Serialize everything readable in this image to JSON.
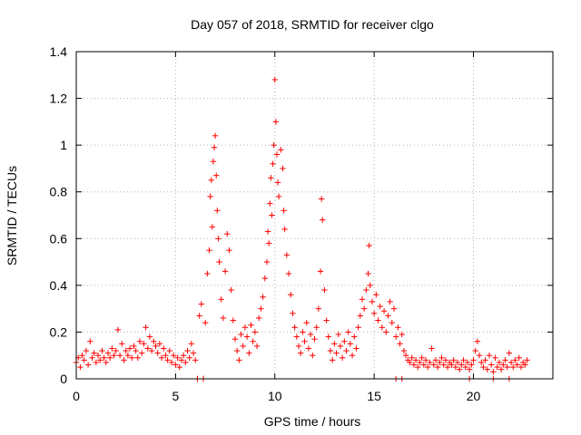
{
  "chart_data": {
    "type": "scatter",
    "title": "Day 057 of 2018, SRMTID for receiver clgo",
    "xlabel": "GPS time / hours",
    "ylabel": "SRMTID / TECUs",
    "xlim": [
      0,
      24
    ],
    "ylim": [
      0,
      1.4
    ],
    "xticks": [
      0,
      5,
      10,
      15,
      20
    ],
    "yticks": [
      0,
      0.2,
      0.4,
      0.6,
      0.8,
      1,
      1.2,
      1.4
    ],
    "ytick_labels": [
      "0",
      "0.2",
      "0.4",
      "0.6",
      "0.8",
      "1",
      "1.2",
      "1.4"
    ],
    "grid": true,
    "marker": "+",
    "color": "#ff0000",
    "series": [
      {
        "name": "SRMTID",
        "points": [
          [
            0.0,
            0.07
          ],
          [
            0.1,
            0.09
          ],
          [
            0.2,
            0.05
          ],
          [
            0.3,
            0.1
          ],
          [
            0.4,
            0.08
          ],
          [
            0.5,
            0.12
          ],
          [
            0.6,
            0.06
          ],
          [
            0.7,
            0.16
          ],
          [
            0.8,
            0.09
          ],
          [
            0.9,
            0.11
          ],
          [
            1.0,
            0.07
          ],
          [
            1.1,
            0.1
          ],
          [
            1.2,
            0.08
          ],
          [
            1.3,
            0.12
          ],
          [
            1.4,
            0.09
          ],
          [
            1.5,
            0.07
          ],
          [
            1.6,
            0.11
          ],
          [
            1.7,
            0.09
          ],
          [
            1.8,
            0.13
          ],
          [
            1.9,
            0.1
          ],
          [
            2.0,
            0.12
          ],
          [
            2.1,
            0.21
          ],
          [
            2.2,
            0.1
          ],
          [
            2.3,
            0.15
          ],
          [
            2.4,
            0.08
          ],
          [
            2.5,
            0.12
          ],
          [
            2.6,
            0.1
          ],
          [
            2.7,
            0.13
          ],
          [
            2.8,
            0.09
          ],
          [
            2.9,
            0.14
          ],
          [
            3.0,
            0.12
          ],
          [
            3.1,
            0.09
          ],
          [
            3.2,
            0.16
          ],
          [
            3.3,
            0.11
          ],
          [
            3.4,
            0.15
          ],
          [
            3.5,
            0.22
          ],
          [
            3.6,
            0.13
          ],
          [
            3.7,
            0.18
          ],
          [
            3.8,
            0.12
          ],
          [
            3.9,
            0.16
          ],
          [
            4.0,
            0.14
          ],
          [
            4.1,
            0.11
          ],
          [
            4.2,
            0.15
          ],
          [
            4.3,
            0.09
          ],
          [
            4.4,
            0.13
          ],
          [
            4.5,
            0.1
          ],
          [
            4.6,
            0.08
          ],
          [
            4.7,
            0.12
          ],
          [
            4.8,
            0.07
          ],
          [
            4.9,
            0.1
          ],
          [
            5.0,
            0.06
          ],
          [
            5.1,
            0.09
          ],
          [
            5.2,
            0.05
          ],
          [
            5.3,
            0.08
          ],
          [
            5.4,
            0.1
          ],
          [
            5.5,
            0.07
          ],
          [
            5.6,
            0.12
          ],
          [
            5.7,
            0.09
          ],
          [
            5.8,
            0.15
          ],
          [
            5.9,
            0.11
          ],
          [
            6.0,
            0.08
          ],
          [
            6.1,
            0.0
          ],
          [
            6.2,
            0.27
          ],
          [
            6.3,
            0.32
          ],
          [
            6.4,
            0.0
          ],
          [
            6.5,
            0.24
          ],
          [
            6.6,
            0.45
          ],
          [
            6.7,
            0.55
          ],
          [
            6.75,
            0.78
          ],
          [
            6.8,
            0.85
          ],
          [
            6.85,
            0.65
          ],
          [
            6.9,
            0.93
          ],
          [
            6.95,
            0.99
          ],
          [
            7.0,
            1.04
          ],
          [
            7.05,
            0.87
          ],
          [
            7.1,
            0.72
          ],
          [
            7.15,
            0.6
          ],
          [
            7.2,
            0.5
          ],
          [
            7.3,
            0.34
          ],
          [
            7.4,
            0.26
          ],
          [
            7.5,
            0.46
          ],
          [
            7.6,
            0.62
          ],
          [
            7.7,
            0.55
          ],
          [
            7.8,
            0.38
          ],
          [
            7.9,
            0.25
          ],
          [
            8.0,
            0.17
          ],
          [
            8.1,
            0.12
          ],
          [
            8.2,
            0.08
          ],
          [
            8.3,
            0.19
          ],
          [
            8.4,
            0.14
          ],
          [
            8.5,
            0.22
          ],
          [
            8.6,
            0.18
          ],
          [
            8.7,
            0.11
          ],
          [
            8.8,
            0.23
          ],
          [
            8.9,
            0.16
          ],
          [
            9.0,
            0.2
          ],
          [
            9.1,
            0.14
          ],
          [
            9.2,
            0.26
          ],
          [
            9.3,
            0.3
          ],
          [
            9.4,
            0.35
          ],
          [
            9.5,
            0.43
          ],
          [
            9.6,
            0.5
          ],
          [
            9.65,
            0.63
          ],
          [
            9.7,
            0.58
          ],
          [
            9.75,
            0.75
          ],
          [
            9.8,
            0.86
          ],
          [
            9.85,
            0.7
          ],
          [
            9.9,
            0.92
          ],
          [
            9.95,
            1.0
          ],
          [
            10.0,
            1.28
          ],
          [
            10.05,
            1.1
          ],
          [
            10.1,
            0.96
          ],
          [
            10.15,
            0.84
          ],
          [
            10.2,
            0.78
          ],
          [
            10.3,
            0.98
          ],
          [
            10.4,
            0.9
          ],
          [
            10.45,
            0.72
          ],
          [
            10.5,
            0.64
          ],
          [
            10.6,
            0.53
          ],
          [
            10.7,
            0.45
          ],
          [
            10.8,
            0.36
          ],
          [
            10.9,
            0.28
          ],
          [
            11.0,
            0.22
          ],
          [
            11.1,
            0.18
          ],
          [
            11.2,
            0.14
          ],
          [
            11.3,
            0.11
          ],
          [
            11.4,
            0.2
          ],
          [
            11.5,
            0.16
          ],
          [
            11.6,
            0.24
          ],
          [
            11.7,
            0.13
          ],
          [
            11.8,
            0.19
          ],
          [
            11.9,
            0.1
          ],
          [
            12.0,
            0.17
          ],
          [
            12.1,
            0.22
          ],
          [
            12.2,
            0.3
          ],
          [
            12.3,
            0.46
          ],
          [
            12.35,
            0.77
          ],
          [
            12.4,
            0.68
          ],
          [
            12.5,
            0.38
          ],
          [
            12.6,
            0.25
          ],
          [
            12.7,
            0.18
          ],
          [
            12.8,
            0.12
          ],
          [
            12.9,
            0.08
          ],
          [
            13.0,
            0.15
          ],
          [
            13.1,
            0.11
          ],
          [
            13.2,
            0.19
          ],
          [
            13.3,
            0.14
          ],
          [
            13.4,
            0.09
          ],
          [
            13.5,
            0.16
          ],
          [
            13.6,
            0.12
          ],
          [
            13.7,
            0.2
          ],
          [
            13.8,
            0.15
          ],
          [
            13.9,
            0.1
          ],
          [
            14.0,
            0.18
          ],
          [
            14.1,
            0.13
          ],
          [
            14.2,
            0.22
          ],
          [
            14.3,
            0.27
          ],
          [
            14.4,
            0.34
          ],
          [
            14.5,
            0.3
          ],
          [
            14.6,
            0.38
          ],
          [
            14.7,
            0.45
          ],
          [
            14.75,
            0.57
          ],
          [
            14.8,
            0.4
          ],
          [
            14.9,
            0.33
          ],
          [
            15.0,
            0.28
          ],
          [
            15.1,
            0.36
          ],
          [
            15.2,
            0.25
          ],
          [
            15.3,
            0.31
          ],
          [
            15.4,
            0.22
          ],
          [
            15.5,
            0.29
          ],
          [
            15.6,
            0.2
          ],
          [
            15.7,
            0.27
          ],
          [
            15.8,
            0.33
          ],
          [
            15.9,
            0.24
          ],
          [
            16.0,
            0.3
          ],
          [
            16.1,
            0.18
          ],
          [
            16.2,
            0.22
          ],
          [
            16.3,
            0.15
          ],
          [
            16.4,
            0.19
          ],
          [
            16.5,
            0.12
          ],
          [
            16.6,
            0.1
          ],
          [
            16.7,
            0.08
          ],
          [
            16.8,
            0.07
          ],
          [
            16.9,
            0.09
          ],
          [
            17.0,
            0.06
          ],
          [
            17.1,
            0.08
          ],
          [
            17.2,
            0.05
          ],
          [
            17.3,
            0.07
          ],
          [
            17.4,
            0.09
          ],
          [
            17.5,
            0.06
          ],
          [
            17.6,
            0.08
          ],
          [
            17.7,
            0.05
          ],
          [
            17.8,
            0.07
          ],
          [
            17.9,
            0.13
          ],
          [
            18.0,
            0.06
          ],
          [
            18.1,
            0.08
          ],
          [
            18.2,
            0.05
          ],
          [
            18.3,
            0.07
          ],
          [
            18.4,
            0.09
          ],
          [
            18.5,
            0.06
          ],
          [
            18.6,
            0.08
          ],
          [
            18.7,
            0.05
          ],
          [
            18.8,
            0.07
          ],
          [
            18.9,
            0.06
          ],
          [
            19.0,
            0.08
          ],
          [
            19.1,
            0.05
          ],
          [
            19.2,
            0.07
          ],
          [
            19.3,
            0.04
          ],
          [
            19.4,
            0.06
          ],
          [
            19.5,
            0.08
          ],
          [
            19.6,
            0.05
          ],
          [
            19.7,
            0.07
          ],
          [
            19.8,
            0.04
          ],
          [
            19.9,
            0.06
          ],
          [
            20.0,
            0.08
          ],
          [
            20.1,
            0.12
          ],
          [
            20.2,
            0.16
          ],
          [
            20.3,
            0.1
          ],
          [
            20.4,
            0.07
          ],
          [
            20.5,
            0.05
          ],
          [
            20.6,
            0.08
          ],
          [
            20.7,
            0.04
          ],
          [
            20.8,
            0.1
          ],
          [
            20.9,
            0.06
          ],
          [
            21.0,
            0.03
          ],
          [
            21.1,
            0.09
          ],
          [
            21.2,
            0.05
          ],
          [
            21.3,
            0.07
          ],
          [
            21.4,
            0.04
          ],
          [
            21.5,
            0.06
          ],
          [
            21.6,
            0.08
          ],
          [
            21.7,
            0.05
          ],
          [
            21.8,
            0.11
          ],
          [
            21.9,
            0.07
          ],
          [
            22.0,
            0.05
          ],
          [
            22.1,
            0.08
          ],
          [
            22.2,
            0.06
          ],
          [
            22.3,
            0.09
          ],
          [
            22.4,
            0.05
          ],
          [
            22.5,
            0.07
          ],
          [
            22.6,
            0.06
          ],
          [
            22.7,
            0.08
          ],
          [
            6.1,
            0.0
          ],
          [
            6.4,
            0.0
          ],
          [
            16.1,
            0.0
          ],
          [
            16.4,
            0.0
          ],
          [
            19.8,
            0.0
          ],
          [
            21.0,
            0.0
          ],
          [
            21.8,
            0.0
          ]
        ]
      }
    ]
  }
}
